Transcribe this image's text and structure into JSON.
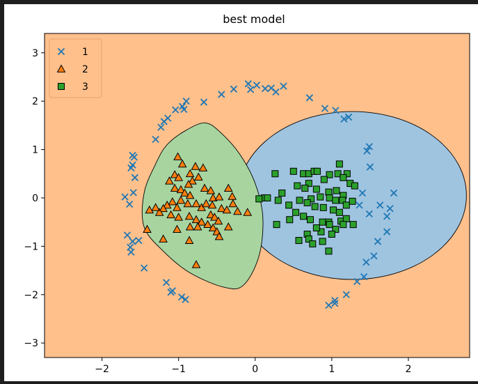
{
  "chart_data": {
    "type": "scatter",
    "title": "best model",
    "xlabel": "",
    "ylabel": "",
    "xlim": [
      -2.75,
      2.8
    ],
    "ylim": [
      -3.3,
      3.4
    ],
    "xticks": [
      -2,
      -1,
      0,
      1,
      2
    ],
    "yticks": [
      -3,
      -2,
      -1,
      0,
      1,
      2,
      3
    ],
    "xtick_labels": [
      "−2",
      "−1",
      "0",
      "1",
      "2"
    ],
    "ytick_labels": [
      "−3",
      "−2",
      "−1",
      "0",
      "1",
      "2",
      "3"
    ],
    "grid": false,
    "legend_position": "top-left",
    "background_region_color": "#ffc08c",
    "regions": [
      {
        "class": "3",
        "color": "#9fc4e0",
        "shape": "circle",
        "center": [
          1.27,
          0.05
        ],
        "radius": 1.55
      },
      {
        "class": "2",
        "color": "#a8d4a0",
        "shape": "leaf",
        "points": [
          [
            -0.65,
            1.55
          ],
          [
            -0.9,
            1.4
          ],
          [
            -1.15,
            1.1
          ],
          [
            -1.3,
            0.7
          ],
          [
            -1.45,
            0.1
          ],
          [
            -1.45,
            -0.6
          ],
          [
            -1.2,
            -1.1
          ],
          [
            -0.85,
            -1.55
          ],
          [
            -0.4,
            -1.85
          ],
          [
            -0.15,
            -1.8
          ],
          [
            0.05,
            -1.2
          ],
          [
            0.1,
            -0.4
          ],
          [
            0.0,
            0.3
          ],
          [
            -0.2,
            0.9
          ],
          [
            -0.45,
            1.35
          ]
        ]
      }
    ],
    "series": [
      {
        "name": "1",
        "marker": "x",
        "color": "#1f77b4",
        "points": [
          [
            -0.09,
            2.36
          ],
          [
            0.02,
            2.33
          ],
          [
            -0.06,
            2.24
          ],
          [
            0.13,
            2.26
          ],
          [
            0.21,
            2.27
          ],
          [
            0.27,
            2.19
          ],
          [
            0.37,
            2.31
          ],
          [
            -0.28,
            2.25
          ],
          [
            -0.44,
            2.14
          ],
          [
            -0.67,
            1.98
          ],
          [
            -0.9,
            2.0
          ],
          [
            -0.95,
            1.89
          ],
          [
            -1.04,
            1.82
          ],
          [
            -0.93,
            1.83
          ],
          [
            -1.14,
            1.65
          ],
          [
            -1.19,
            1.58
          ],
          [
            -1.23,
            1.46
          ],
          [
            -1.3,
            1.21
          ],
          [
            0.71,
            2.07
          ],
          [
            0.91,
            1.85
          ],
          [
            1.05,
            1.81
          ],
          [
            1.16,
            1.63
          ],
          [
            1.22,
            1.67
          ],
          [
            1.49,
            1.06
          ],
          [
            1.46,
            0.97
          ],
          [
            1.5,
            0.64
          ],
          [
            1.4,
            0.1
          ],
          [
            1.36,
            -0.15
          ],
          [
            1.49,
            -0.33
          ],
          [
            1.63,
            -0.15
          ],
          [
            1.72,
            -0.38
          ],
          [
            1.81,
            0.1
          ],
          [
            1.76,
            -0.22
          ],
          [
            1.72,
            -0.7
          ],
          [
            1.6,
            -0.9
          ],
          [
            1.55,
            -1.2
          ],
          [
            1.45,
            -1.33
          ],
          [
            1.42,
            -1.63
          ],
          [
            1.33,
            -1.73
          ],
          [
            1.19,
            -2.0
          ],
          [
            1.04,
            -2.12
          ],
          [
            0.96,
            -2.22
          ],
          [
            1.04,
            -2.18
          ],
          [
            -0.91,
            -2.1
          ],
          [
            -0.96,
            -2.05
          ],
          [
            -1.08,
            -1.92
          ],
          [
            -1.1,
            -1.95
          ],
          [
            -1.16,
            -1.75
          ],
          [
            -1.45,
            -1.45
          ],
          [
            -1.52,
            -0.88
          ],
          [
            -1.6,
            -0.9
          ],
          [
            -1.63,
            -1.02
          ],
          [
            -1.62,
            -1.12
          ],
          [
            -1.67,
            -0.77
          ],
          [
            -1.64,
            -0.13
          ],
          [
            -1.7,
            0.02
          ],
          [
            -1.59,
            0.11
          ],
          [
            -1.57,
            0.42
          ],
          [
            -1.6,
            0.68
          ],
          [
            -1.62,
            0.62
          ],
          [
            -1.58,
            0.84
          ],
          [
            -1.6,
            0.88
          ]
        ]
      },
      {
        "name": "2",
        "marker": "^",
        "color": "#ff7f0e",
        "points": [
          [
            -1.01,
            0.85
          ],
          [
            -0.95,
            0.7
          ],
          [
            -0.78,
            0.65
          ],
          [
            -0.68,
            0.62
          ],
          [
            -0.85,
            0.5
          ],
          [
            -1.05,
            0.48
          ],
          [
            -1.0,
            0.42
          ],
          [
            -0.74,
            0.43
          ],
          [
            -1.12,
            0.35
          ],
          [
            -0.82,
            0.35
          ],
          [
            -0.87,
            0.28
          ],
          [
            -1.05,
            0.2
          ],
          [
            -0.97,
            0.17
          ],
          [
            -0.92,
            0.1
          ],
          [
            -0.85,
            0.05
          ],
          [
            -0.66,
            0.2
          ],
          [
            -0.58,
            0.15
          ],
          [
            -0.55,
            0.0
          ],
          [
            -0.35,
            0.2
          ],
          [
            -0.47,
            0.02
          ],
          [
            -0.3,
            0.03
          ],
          [
            -0.97,
            -0.05
          ],
          [
            -1.08,
            -0.08
          ],
          [
            -1.15,
            -0.15
          ],
          [
            -1.2,
            -0.22
          ],
          [
            -1.25,
            -0.3
          ],
          [
            -1.3,
            -0.2
          ],
          [
            -1.38,
            -0.25
          ],
          [
            -1.02,
            -0.2
          ],
          [
            -0.88,
            -0.12
          ],
          [
            -0.77,
            -0.12
          ],
          [
            -0.7,
            -0.2
          ],
          [
            -0.64,
            -0.12
          ],
          [
            -0.56,
            -0.15
          ],
          [
            -0.44,
            -0.22
          ],
          [
            -0.37,
            -0.25
          ],
          [
            -0.29,
            -0.12
          ],
          [
            -0.23,
            -0.28
          ],
          [
            -0.1,
            -0.3
          ],
          [
            -1.1,
            -0.35
          ],
          [
            -1.0,
            -0.4
          ],
          [
            -0.86,
            -0.38
          ],
          [
            -0.77,
            -0.45
          ],
          [
            -0.7,
            -0.5
          ],
          [
            -0.58,
            -0.35
          ],
          [
            -0.53,
            -0.4
          ],
          [
            -0.48,
            -0.48
          ],
          [
            -0.62,
            -0.55
          ],
          [
            -0.75,
            -0.6
          ],
          [
            -0.85,
            -0.6
          ],
          [
            -0.55,
            -0.62
          ],
          [
            -0.5,
            -0.7
          ],
          [
            -0.35,
            -0.6
          ],
          [
            -1.02,
            -0.65
          ],
          [
            -1.41,
            -0.65
          ],
          [
            -0.47,
            -0.8
          ],
          [
            -1.2,
            -0.85
          ],
          [
            -0.86,
            -0.88
          ],
          [
            -0.77,
            -1.38
          ]
        ]
      },
      {
        "name": "3",
        "marker": "s",
        "color": "#2ca02c",
        "points": [
          [
            0.26,
            0.5
          ],
          [
            0.5,
            0.55
          ],
          [
            0.63,
            0.5
          ],
          [
            0.7,
            0.5
          ],
          [
            0.77,
            0.55
          ],
          [
            0.81,
            0.55
          ],
          [
            0.97,
            0.48
          ],
          [
            1.1,
            0.7
          ],
          [
            1.08,
            0.5
          ],
          [
            1.2,
            0.5
          ],
          [
            1.15,
            0.42
          ],
          [
            1.24,
            0.3
          ],
          [
            1.3,
            0.25
          ],
          [
            0.9,
            0.38
          ],
          [
            0.7,
            0.3
          ],
          [
            0.55,
            0.25
          ],
          [
            0.65,
            0.2
          ],
          [
            0.8,
            0.18
          ],
          [
            0.96,
            0.12
          ],
          [
            1.06,
            0.15
          ],
          [
            1.15,
            0.05
          ],
          [
            0.35,
            0.1
          ],
          [
            0.12,
            0.0
          ],
          [
            0.16,
            0.0
          ],
          [
            0.05,
            -0.02
          ],
          [
            0.3,
            -0.05
          ],
          [
            0.44,
            -0.15
          ],
          [
            0.58,
            -0.05
          ],
          [
            0.73,
            -0.02
          ],
          [
            0.85,
            0.02
          ],
          [
            0.97,
            0.0
          ],
          [
            1.05,
            -0.05
          ],
          [
            1.14,
            -0.05
          ],
          [
            1.27,
            -0.07
          ],
          [
            1.19,
            -0.15
          ],
          [
            0.68,
            -0.1
          ],
          [
            0.78,
            -0.18
          ],
          [
            0.89,
            -0.2
          ],
          [
            1.02,
            -0.25
          ],
          [
            1.1,
            -0.3
          ],
          [
            0.53,
            -0.3
          ],
          [
            0.63,
            -0.38
          ],
          [
            0.45,
            -0.45
          ],
          [
            0.28,
            -0.55
          ],
          [
            0.72,
            -0.45
          ],
          [
            0.88,
            -0.5
          ],
          [
            0.96,
            -0.5
          ],
          [
            1.12,
            -0.48
          ],
          [
            1.19,
            -0.43
          ],
          [
            1.28,
            -0.55
          ],
          [
            1.05,
            -0.65
          ],
          [
            0.97,
            -0.55
          ],
          [
            0.86,
            -0.7
          ],
          [
            0.8,
            -0.62
          ],
          [
            0.68,
            -0.75
          ],
          [
            0.7,
            -0.85
          ],
          [
            0.57,
            -0.88
          ],
          [
            0.75,
            -0.95
          ],
          [
            0.88,
            -0.9
          ],
          [
            1.0,
            -0.75
          ],
          [
            1.15,
            -0.55
          ],
          [
            0.96,
            -1.1
          ]
        ]
      }
    ]
  }
}
